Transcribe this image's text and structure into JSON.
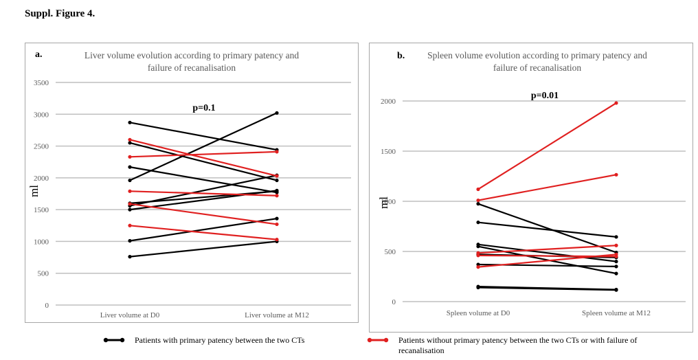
{
  "figure_title": "Suppl. Figure 4.",
  "colors": {
    "black": "#000000",
    "red": "#e02020",
    "grid": "#bfbfbf",
    "axis_text": "#595959"
  },
  "legend": {
    "black_label": "Patients with primary patency between the two CTs",
    "red_label": "Patients without primary patency between the two CTs or with failure of recanalisation"
  },
  "chart_data": [
    {
      "type": "line",
      "panel_letter": "a.",
      "title": "Liver volume evolution according to primary patency and failure of recanalisation",
      "title_lines": [
        "Liver volume evolution according to primary patency and",
        "failure of recanalisation"
      ],
      "categories": [
        "Liver volume at D0",
        "Liver volume at M12"
      ],
      "ylabel": "ml",
      "ylim": [
        0,
        3500
      ],
      "yticks": [
        0,
        500,
        1000,
        1500,
        2000,
        2500,
        3000,
        3500
      ],
      "grid": true,
      "annotation": "p=0.1",
      "series": [
        {
          "group": "primary patency",
          "color": "black",
          "values": [
            2870,
            2440
          ]
        },
        {
          "group": "primary patency",
          "color": "black",
          "values": [
            2550,
            1960
          ]
        },
        {
          "group": "primary patency",
          "color": "black",
          "values": [
            2170,
            1770
          ]
        },
        {
          "group": "primary patency",
          "color": "black",
          "values": [
            1960,
            3020
          ]
        },
        {
          "group": "primary patency",
          "color": "black",
          "values": [
            1600,
            1790
          ]
        },
        {
          "group": "primary patency",
          "color": "black",
          "values": [
            1560,
            2040
          ]
        },
        {
          "group": "primary patency",
          "color": "black",
          "values": [
            1500,
            1800
          ]
        },
        {
          "group": "primary patency",
          "color": "black",
          "values": [
            1010,
            1360
          ]
        },
        {
          "group": "primary patency",
          "color": "black",
          "values": [
            760,
            1000
          ]
        },
        {
          "group": "no patency / failure",
          "color": "red",
          "values": [
            2600,
            2030
          ]
        },
        {
          "group": "no patency / failure",
          "color": "red",
          "values": [
            2330,
            2410
          ]
        },
        {
          "group": "no patency / failure",
          "color": "red",
          "values": [
            1790,
            1720
          ]
        },
        {
          "group": "no patency / failure",
          "color": "red",
          "values": [
            1590,
            1270
          ]
        },
        {
          "group": "no patency / failure",
          "color": "red",
          "values": [
            1250,
            1030
          ]
        }
      ]
    },
    {
      "type": "line",
      "panel_letter": "b.",
      "title": "Spleen volume evolution according to primary patency and failure of recanalisation",
      "title_lines": [
        "Spleen volume evolution according to primary patency and",
        "failure of recanalisation"
      ],
      "categories": [
        "Spleen volume at D0",
        "Spleen volume at M12"
      ],
      "ylabel": "ml",
      "ylim": [
        0,
        2000
      ],
      "yticks": [
        0,
        500,
        1000,
        1500,
        2000
      ],
      "grid": true,
      "annotation": "p=0.01",
      "series": [
        {
          "group": "primary patency",
          "color": "black",
          "values": [
            975,
            490
          ]
        },
        {
          "group": "primary patency",
          "color": "black",
          "values": [
            790,
            645
          ]
        },
        {
          "group": "primary patency",
          "color": "black",
          "values": [
            570,
            400
          ]
        },
        {
          "group": "primary patency",
          "color": "black",
          "values": [
            550,
            280
          ]
        },
        {
          "group": "primary patency",
          "color": "black",
          "values": [
            470,
            440
          ]
        },
        {
          "group": "primary patency",
          "color": "black",
          "values": [
            370,
            350
          ]
        },
        {
          "group": "primary patency",
          "color": "black",
          "values": [
            150,
            120
          ]
        },
        {
          "group": "primary patency",
          "color": "black",
          "values": [
            140,
            115
          ]
        },
        {
          "group": "no patency / failure",
          "color": "red",
          "values": [
            1120,
            1980
          ]
        },
        {
          "group": "no patency / failure",
          "color": "red",
          "values": [
            1010,
            1265
          ]
        },
        {
          "group": "no patency / failure",
          "color": "red",
          "values": [
            485,
            560
          ]
        },
        {
          "group": "no patency / failure",
          "color": "red",
          "values": [
            460,
            450
          ]
        },
        {
          "group": "no patency / failure",
          "color": "red",
          "values": [
            345,
            470
          ]
        }
      ]
    }
  ]
}
